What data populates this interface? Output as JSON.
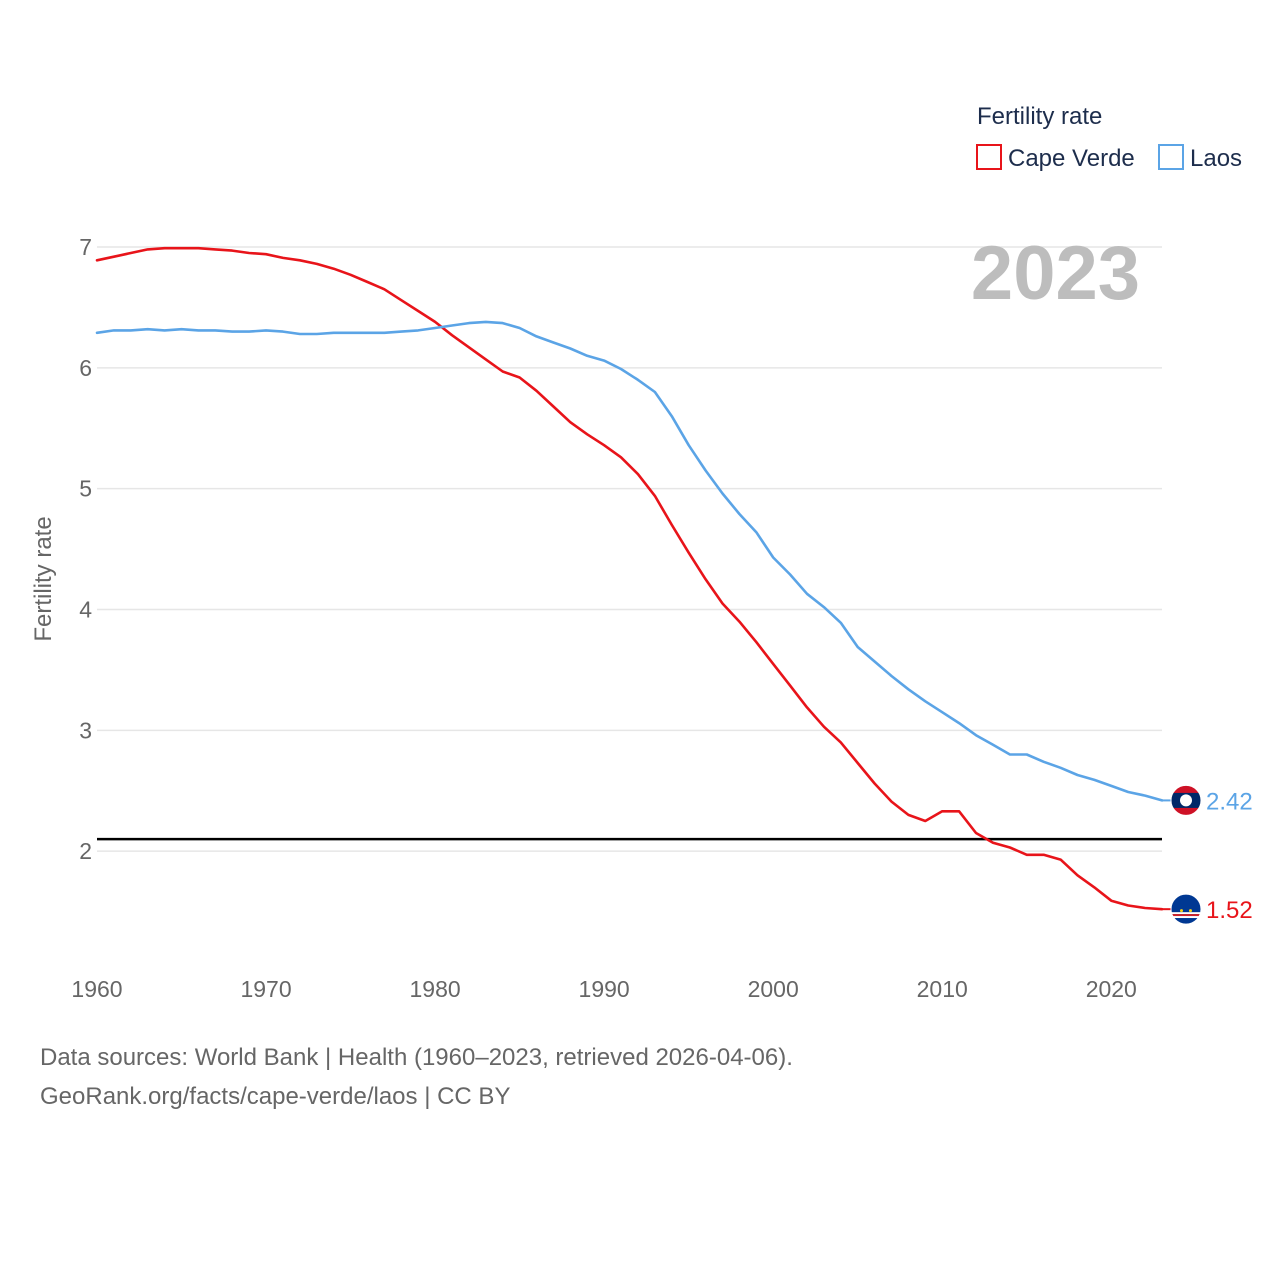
{
  "chart_data": {
    "type": "line",
    "title": "Fertility rate",
    "current_year": "2023",
    "ylabel": "Fertility rate",
    "xlabel": "",
    "xlim": [
      1960,
      2023
    ],
    "ylim": [
      1.0,
      7.0
    ],
    "x_ticks": [
      "1960",
      "1970",
      "1980",
      "1990",
      "2000",
      "2010",
      "2020"
    ],
    "y_ticks": [
      "2",
      "3",
      "4",
      "5",
      "6",
      "7"
    ],
    "reference_line": {
      "y": 2.1,
      "color": "#000000"
    },
    "legend": {
      "title": "Fertility rate",
      "position": "top-right"
    },
    "series": [
      {
        "name": "Cape Verde",
        "color": "#e8141a",
        "end_label": "1.52",
        "flag": "cape-verde-flag-icon",
        "points": [
          [
            1960,
            6.89
          ],
          [
            1961,
            6.92
          ],
          [
            1962,
            6.95
          ],
          [
            1963,
            6.98
          ],
          [
            1964,
            6.99
          ],
          [
            1965,
            6.99
          ],
          [
            1966,
            6.99
          ],
          [
            1967,
            6.98
          ],
          [
            1968,
            6.97
          ],
          [
            1969,
            6.95
          ],
          [
            1970,
            6.94
          ],
          [
            1971,
            6.91
          ],
          [
            1972,
            6.89
          ],
          [
            1973,
            6.86
          ],
          [
            1974,
            6.82
          ],
          [
            1975,
            6.77
          ],
          [
            1976,
            6.71
          ],
          [
            1977,
            6.65
          ],
          [
            1978,
            6.56
          ],
          [
            1979,
            6.47
          ],
          [
            1980,
            6.38
          ],
          [
            1981,
            6.27
          ],
          [
            1982,
            6.17
          ],
          [
            1983,
            6.07
          ],
          [
            1984,
            5.97
          ],
          [
            1985,
            5.92
          ],
          [
            1986,
            5.81
          ],
          [
            1987,
            5.68
          ],
          [
            1988,
            5.55
          ],
          [
            1989,
            5.45
          ],
          [
            1990,
            5.36
          ],
          [
            1991,
            5.26
          ],
          [
            1992,
            5.12
          ],
          [
            1993,
            4.94
          ],
          [
            1994,
            4.7
          ],
          [
            1995,
            4.47
          ],
          [
            1996,
            4.25
          ],
          [
            1997,
            4.05
          ],
          [
            1998,
            3.9
          ],
          [
            1999,
            3.73
          ],
          [
            2000,
            3.55
          ],
          [
            2001,
            3.37
          ],
          [
            2002,
            3.19
          ],
          [
            2003,
            3.03
          ],
          [
            2004,
            2.9
          ],
          [
            2005,
            2.73
          ],
          [
            2006,
            2.56
          ],
          [
            2007,
            2.41
          ],
          [
            2008,
            2.3
          ],
          [
            2009,
            2.25
          ],
          [
            2010,
            2.33
          ],
          [
            2011,
            2.33
          ],
          [
            2012,
            2.15
          ],
          [
            2013,
            2.07
          ],
          [
            2014,
            2.03
          ],
          [
            2015,
            1.97
          ],
          [
            2016,
            1.97
          ],
          [
            2017,
            1.93
          ],
          [
            2018,
            1.8
          ],
          [
            2019,
            1.7
          ],
          [
            2020,
            1.59
          ],
          [
            2021,
            1.55
          ],
          [
            2022,
            1.53
          ],
          [
            2023,
            1.52
          ]
        ]
      },
      {
        "name": "Laos",
        "color": "#5ba4e6",
        "end_label": "2.42",
        "flag": "laos-flag-icon",
        "points": [
          [
            1960,
            6.29
          ],
          [
            1961,
            6.31
          ],
          [
            1962,
            6.31
          ],
          [
            1963,
            6.32
          ],
          [
            1964,
            6.31
          ],
          [
            1965,
            6.32
          ],
          [
            1966,
            6.31
          ],
          [
            1967,
            6.31
          ],
          [
            1968,
            6.3
          ],
          [
            1969,
            6.3
          ],
          [
            1970,
            6.31
          ],
          [
            1971,
            6.3
          ],
          [
            1972,
            6.28
          ],
          [
            1973,
            6.28
          ],
          [
            1974,
            6.29
          ],
          [
            1975,
            6.29
          ],
          [
            1976,
            6.29
          ],
          [
            1977,
            6.29
          ],
          [
            1978,
            6.3
          ],
          [
            1979,
            6.31
          ],
          [
            1980,
            6.33
          ],
          [
            1981,
            6.35
          ],
          [
            1982,
            6.37
          ],
          [
            1983,
            6.38
          ],
          [
            1984,
            6.37
          ],
          [
            1985,
            6.33
          ],
          [
            1986,
            6.26
          ],
          [
            1987,
            6.21
          ],
          [
            1988,
            6.16
          ],
          [
            1989,
            6.1
          ],
          [
            1990,
            6.06
          ],
          [
            1991,
            5.99
          ],
          [
            1992,
            5.9
          ],
          [
            1993,
            5.8
          ],
          [
            1994,
            5.6
          ],
          [
            1995,
            5.36
          ],
          [
            1996,
            5.15
          ],
          [
            1997,
            4.96
          ],
          [
            1998,
            4.79
          ],
          [
            1999,
            4.64
          ],
          [
            2000,
            4.43
          ],
          [
            2001,
            4.29
          ],
          [
            2002,
            4.13
          ],
          [
            2003,
            4.02
          ],
          [
            2004,
            3.89
          ],
          [
            2005,
            3.69
          ],
          [
            2006,
            3.57
          ],
          [
            2007,
            3.45
          ],
          [
            2008,
            3.34
          ],
          [
            2009,
            3.24
          ],
          [
            2010,
            3.15
          ],
          [
            2011,
            3.06
          ],
          [
            2012,
            2.96
          ],
          [
            2013,
            2.88
          ],
          [
            2014,
            2.8
          ],
          [
            2015,
            2.8
          ],
          [
            2016,
            2.74
          ],
          [
            2017,
            2.69
          ],
          [
            2018,
            2.63
          ],
          [
            2019,
            2.59
          ],
          [
            2020,
            2.54
          ],
          [
            2021,
            2.49
          ],
          [
            2022,
            2.46
          ],
          [
            2023,
            2.42
          ]
        ]
      }
    ]
  },
  "footer": {
    "sources": "Data sources: World Bank | Health (1960–2023, retrieved 2026-04-06).",
    "credit": "GeoRank.org/facts/cape-verde/laos | CC BY"
  }
}
